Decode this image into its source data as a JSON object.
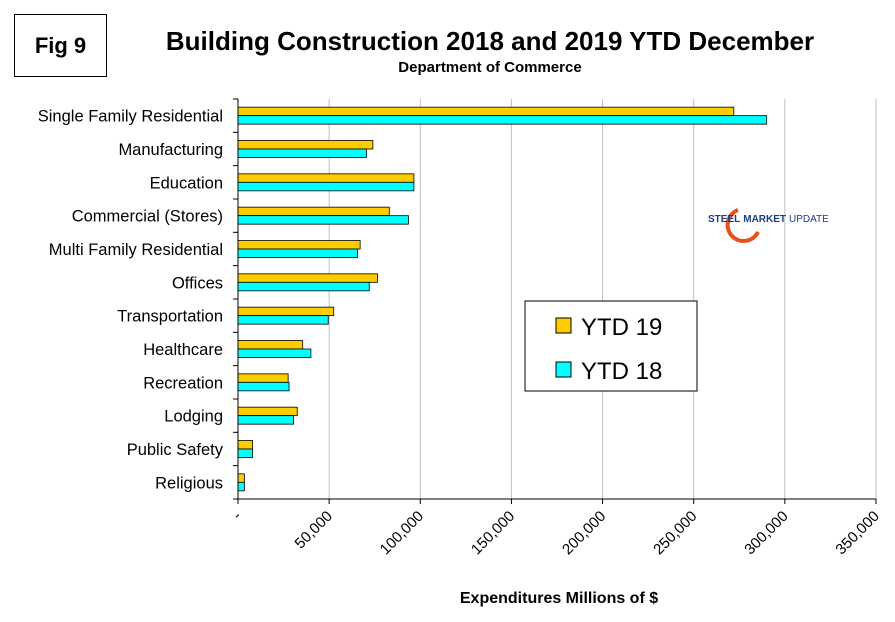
{
  "fig_label": "Fig 9",
  "chart_data": {
    "type": "bar",
    "orientation": "horizontal",
    "title": "Building Construction 2018 and 2019 YTD December",
    "subtitle": "Department of Commerce",
    "xlabel": "Expenditures Millions of $",
    "ylabel": "",
    "xlim": [
      0,
      350000
    ],
    "xticks": [
      0,
      50000,
      100000,
      150000,
      200000,
      250000,
      300000,
      350000
    ],
    "xtick_labels": [
      "-",
      "50,000",
      "100,000",
      "150,000",
      "200,000",
      "250,000",
      "300,000",
      "350,000"
    ],
    "grid": "vertical",
    "categories": [
      "Single Family Residential",
      "Manufacturing",
      "Education",
      "Commercial (Stores)",
      "Multi Family Residential",
      "Offices",
      "Transportation",
      "Healthcare",
      "Recreation",
      "Lodging",
      "Public Safety",
      "Religious"
    ],
    "series": [
      {
        "name": "YTD 19",
        "color": "#FFCC00",
        "values": [
          272000,
          74000,
          96500,
          83000,
          67000,
          76500,
          52500,
          35500,
          27500,
          32500,
          8000,
          3500
        ]
      },
      {
        "name": "YTD 18",
        "color": "#00FFFF",
        "values": [
          290000,
          70500,
          96500,
          93500,
          65500,
          72000,
          49500,
          40000,
          28000,
          30500,
          8000,
          3500
        ]
      }
    ],
    "legend_position": "center-right"
  },
  "logo": {
    "text_left": "STEEL",
    "text_mid": "MARKET",
    "text_right": "UPDATE"
  }
}
